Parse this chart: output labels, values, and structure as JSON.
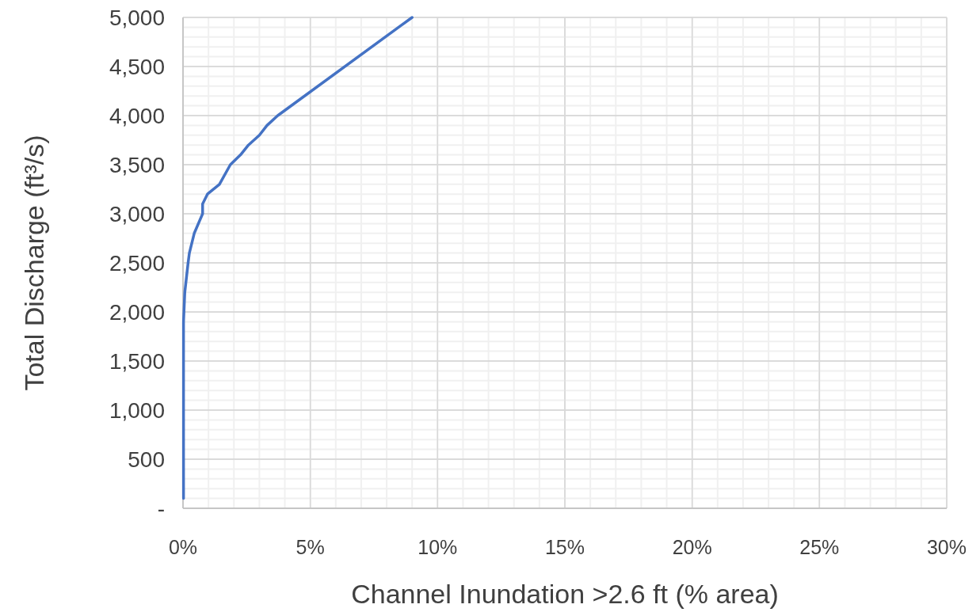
{
  "chart_data": {
    "type": "line",
    "xlabel": "Channel Inundation >2.6 ft (% area)",
    "ylabel": "Total Discharge (ft³/s)",
    "xlim": [
      0,
      30
    ],
    "ylim": [
      0,
      5000
    ],
    "xticks": [
      {
        "value": 0,
        "label": "0%"
      },
      {
        "value": 1,
        "label": null
      },
      {
        "value": 2,
        "label": null
      },
      {
        "value": 3,
        "label": null
      },
      {
        "value": 4,
        "label": null
      },
      {
        "value": 5,
        "label": "5%"
      },
      {
        "value": 6,
        "label": null
      },
      {
        "value": 7,
        "label": null
      },
      {
        "value": 8,
        "label": null
      },
      {
        "value": 9,
        "label": null
      },
      {
        "value": 10,
        "label": "10%"
      },
      {
        "value": 11,
        "label": null
      },
      {
        "value": 12,
        "label": null
      },
      {
        "value": 13,
        "label": null
      },
      {
        "value": 14,
        "label": null
      },
      {
        "value": 15,
        "label": "15%"
      },
      {
        "value": 16,
        "label": null
      },
      {
        "value": 17,
        "label": null
      },
      {
        "value": 18,
        "label": null
      },
      {
        "value": 19,
        "label": null
      },
      {
        "value": 20,
        "label": "20%"
      },
      {
        "value": 21,
        "label": null
      },
      {
        "value": 22,
        "label": null
      },
      {
        "value": 23,
        "label": null
      },
      {
        "value": 24,
        "label": null
      },
      {
        "value": 25,
        "label": "25%"
      },
      {
        "value": 26,
        "label": null
      },
      {
        "value": 27,
        "label": null
      },
      {
        "value": 28,
        "label": null
      },
      {
        "value": 29,
        "label": null
      },
      {
        "value": 30,
        "label": "30%"
      }
    ],
    "yticks": [
      {
        "value": 0,
        "label": "-"
      },
      {
        "value": 100,
        "label": null
      },
      {
        "value": 200,
        "label": null
      },
      {
        "value": 300,
        "label": null
      },
      {
        "value": 400,
        "label": null
      },
      {
        "value": 500,
        "label": "500"
      },
      {
        "value": 600,
        "label": null
      },
      {
        "value": 700,
        "label": null
      },
      {
        "value": 800,
        "label": null
      },
      {
        "value": 900,
        "label": null
      },
      {
        "value": 1000,
        "label": "1,000"
      },
      {
        "value": 1100,
        "label": null
      },
      {
        "value": 1200,
        "label": null
      },
      {
        "value": 1300,
        "label": null
      },
      {
        "value": 1400,
        "label": null
      },
      {
        "value": 1500,
        "label": "1,500"
      },
      {
        "value": 1600,
        "label": null
      },
      {
        "value": 1700,
        "label": null
      },
      {
        "value": 1800,
        "label": null
      },
      {
        "value": 1900,
        "label": null
      },
      {
        "value": 2000,
        "label": "2,000"
      },
      {
        "value": 2100,
        "label": null
      },
      {
        "value": 2200,
        "label": null
      },
      {
        "value": 2300,
        "label": null
      },
      {
        "value": 2400,
        "label": null
      },
      {
        "value": 2500,
        "label": "2,500"
      },
      {
        "value": 2600,
        "label": null
      },
      {
        "value": 2700,
        "label": null
      },
      {
        "value": 2800,
        "label": null
      },
      {
        "value": 2900,
        "label": null
      },
      {
        "value": 3000,
        "label": "3,000"
      },
      {
        "value": 3100,
        "label": null
      },
      {
        "value": 3200,
        "label": null
      },
      {
        "value": 3300,
        "label": null
      },
      {
        "value": 3400,
        "label": null
      },
      {
        "value": 3500,
        "label": "3,500"
      },
      {
        "value": 3600,
        "label": null
      },
      {
        "value": 3700,
        "label": null
      },
      {
        "value": 3800,
        "label": null
      },
      {
        "value": 3900,
        "label": null
      },
      {
        "value": 4000,
        "label": "4,000"
      },
      {
        "value": 4100,
        "label": null
      },
      {
        "value": 4200,
        "label": null
      },
      {
        "value": 4300,
        "label": null
      },
      {
        "value": 4400,
        "label": null
      },
      {
        "value": 4500,
        "label": "4,500"
      },
      {
        "value": 4600,
        "label": null
      },
      {
        "value": 4700,
        "label": null
      },
      {
        "value": 4800,
        "label": null
      },
      {
        "value": 4900,
        "label": null
      },
      {
        "value": 5000,
        "label": "5,000"
      }
    ],
    "grid": true,
    "marker": "none",
    "line_style": "solid",
    "series": [
      {
        "color": "#4472c4",
        "x": [
          0.02,
          0.02,
          0.07,
          0.2,
          0.25,
          0.44,
          0.77,
          0.77,
          0.96,
          1.43,
          1.86,
          2.26,
          2.57,
          3.0,
          3.3,
          3.72,
          9.0
        ],
        "values": [
          100,
          1900,
          2200,
          2500,
          2600,
          2800,
          3000,
          3100,
          3200,
          3300,
          3500,
          3600,
          3700,
          3800,
          3900,
          4000,
          5000
        ]
      }
    ]
  }
}
